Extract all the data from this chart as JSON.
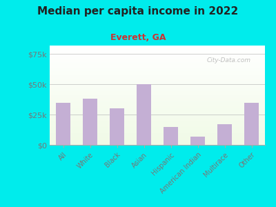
{
  "title": "Median per capita income in 2022",
  "subtitle": "Everett, GA",
  "categories": [
    "All",
    "White",
    "Black",
    "Asian",
    "Hispanic",
    "American Indian",
    "Multirace",
    "Other"
  ],
  "values": [
    35000,
    38000,
    30000,
    50000,
    15000,
    7000,
    17000,
    35000
  ],
  "bar_color": "#c4afd4",
  "background_outer": "#00ECEC",
  "background_inner_top": "#f0f8e8",
  "background_inner_bottom": "#e8f4d8",
  "title_color": "#222222",
  "subtitle_color": "#cc3333",
  "tick_label_color": "#777777",
  "ylabel_ticks": [
    0,
    25000,
    50000,
    75000
  ],
  "ylabel_labels": [
    "$0",
    "$25k",
    "$50k",
    "$75k"
  ],
  "ylim": [
    0,
    82000
  ],
  "watermark": "City-Data.com"
}
